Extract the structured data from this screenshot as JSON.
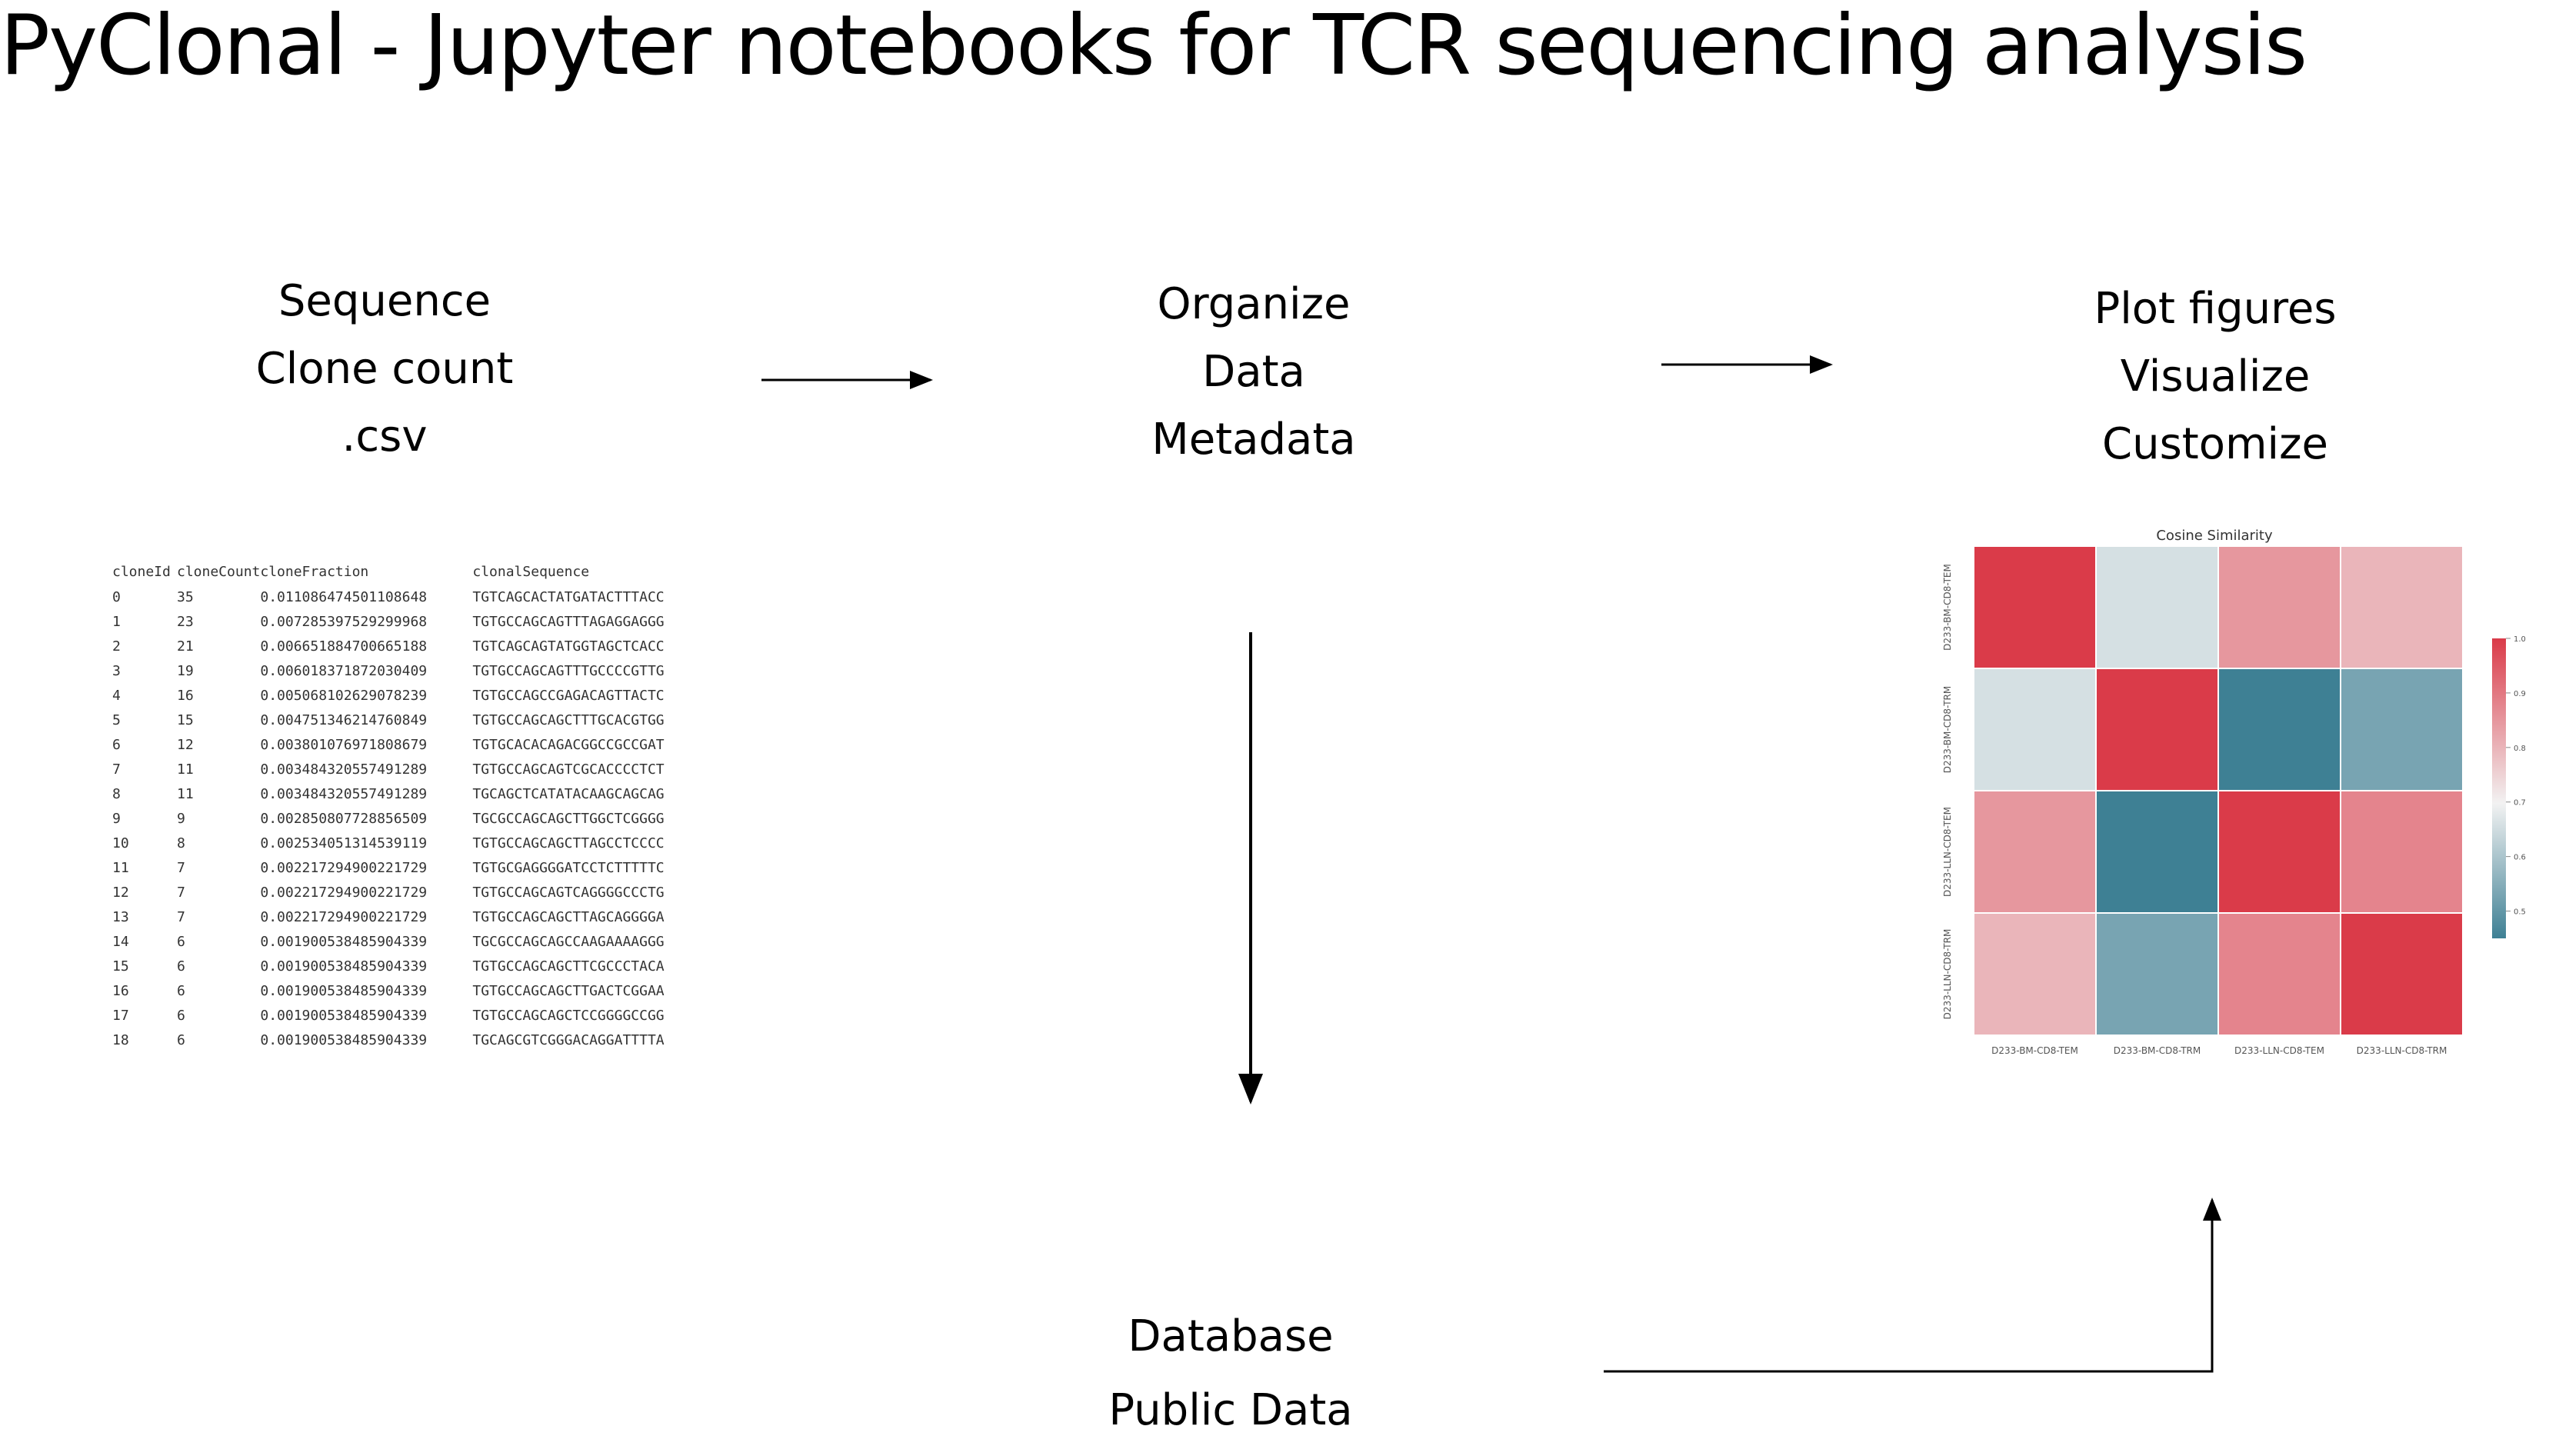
{
  "title": "PyClonal - Jupyter notebooks for TCR sequencing analysis",
  "input_block": {
    "lines": [
      "Sequence",
      "Clone count",
      ".csv"
    ]
  },
  "organize_block": {
    "lines": [
      "Organize",
      "Data",
      "Metadata"
    ]
  },
  "plot_block": {
    "lines": [
      "Plot  figures",
      "Visualize",
      "Customize"
    ]
  },
  "database_block": {
    "lines": [
      "Database",
      "Public Data"
    ]
  },
  "csv_table": {
    "columns": [
      "cloneId",
      "cloneCount",
      "cloneFraction",
      "clonalSequence"
    ],
    "rows": [
      [
        "0",
        "35",
        "0.011086474501108648",
        "TGTCAGCACTATGATACTTTACC"
      ],
      [
        "1",
        "23",
        "0.007285397529299968",
        "TGTGCCAGCAGTTTAGAGGAGGG"
      ],
      [
        "2",
        "21",
        "0.006651884700665188",
        "TGTCAGCAGTATGGTAGCTCACC"
      ],
      [
        "3",
        "19",
        "0.006018371872030409",
        "TGTGCCAGCAGTTTGCCCCGTTG"
      ],
      [
        "4",
        "16",
        "0.005068102629078239",
        "TGTGCCAGCCGAGACAGTTACTC"
      ],
      [
        "5",
        "15",
        "0.004751346214760849",
        "TGTGCCAGCAGCTTTGCACGTGG"
      ],
      [
        "6",
        "12",
        "0.003801076971808679",
        "TGTGCACACAGACGGCCGCCGAT"
      ],
      [
        "7",
        "11",
        "0.003484320557491289",
        "TGTGCCAGCAGTCGCACCCCTCT"
      ],
      [
        "8",
        "11",
        "0.003484320557491289",
        "TGCAGCTCATATACAAGCAGCAG"
      ],
      [
        "9",
        "9",
        "0.002850807728856509",
        "TGCGCCAGCAGCTTGGCTCGGGG"
      ],
      [
        "10",
        "8",
        "0.002534051314539119",
        "TGTGCCAGCAGCTTAGCCTCCCC"
      ],
      [
        "11",
        "7",
        "0.002217294900221729",
        "TGTGCGAGGGGATCCTCTTTTTC"
      ],
      [
        "12",
        "7",
        "0.002217294900221729",
        "TGTGCCAGCAGTCAGGGGCCCTG"
      ],
      [
        "13",
        "7",
        "0.002217294900221729",
        "TGTGCCAGCAGCTTAGCAGGGGA"
      ],
      [
        "14",
        "6",
        "0.001900538485904339",
        "TGCGCCAGCAGCCAAGAAAAGGG"
      ],
      [
        "15",
        "6",
        "0.001900538485904339",
        "TGTGCCAGCAGCTTCGCCCTACA"
      ],
      [
        "16",
        "6",
        "0.001900538485904339",
        "TGTGCCAGCAGCTTGACTCGGAA"
      ],
      [
        "17",
        "6",
        "0.001900538485904339",
        "TGTGCCAGCAGCTCCGGGGCCGG"
      ],
      [
        "18",
        "6",
        "0.001900538485904339",
        "TGCAGCGTCGGGACAGGATTTTA"
      ]
    ]
  },
  "chart_data": {
    "type": "heatmap",
    "title": "Cosine Similarity",
    "categories": [
      "D233-BM-CD8-TEM",
      "D233-BM-CD8-TRM",
      "D233-LLN-CD8-TEM",
      "D233-LLN-CD8-TRM"
    ],
    "values": [
      [
        1.0,
        0.66,
        0.85,
        0.8
      ],
      [
        0.66,
        1.0,
        0.45,
        0.53
      ],
      [
        0.85,
        0.45,
        1.0,
        0.88
      ],
      [
        0.8,
        0.53,
        0.88,
        1.0
      ]
    ],
    "colorbar": {
      "min": 0.45,
      "max": 1.0,
      "ticks": [
        "1.0",
        "0.9",
        "0.8",
        "0.7",
        "0.6",
        "0.5"
      ]
    },
    "colors": {
      "low": "#3e8094",
      "mid": "#f2f2f2",
      "high": "#da3b49"
    },
    "grid": false
  }
}
